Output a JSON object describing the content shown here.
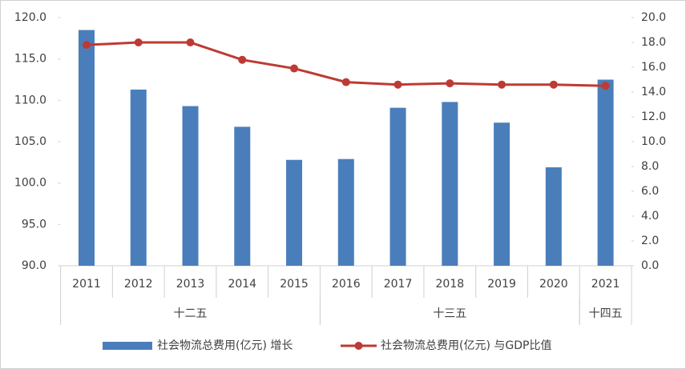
{
  "chart_data": {
    "type": "bar-line",
    "categories": [
      "2011",
      "2012",
      "2013",
      "2014",
      "2015",
      "2016",
      "2017",
      "2018",
      "2019",
      "2020",
      "2021"
    ],
    "groups": [
      {
        "label": "十二五",
        "count": 5
      },
      {
        "label": "十三五",
        "count": 5
      },
      {
        "label": "十四五",
        "count": 1
      }
    ],
    "series": [
      {
        "name": "社会物流总费用(亿元) 增长",
        "type": "bar",
        "color": "#4a7ebb",
        "values": [
          118.5,
          111.3,
          109.3,
          106.8,
          102.8,
          102.9,
          109.1,
          109.8,
          107.3,
          101.9,
          112.5
        ]
      },
      {
        "name": "社会物流总费用(亿元) 与GDP比值",
        "type": "line",
        "axis": "y2",
        "color": "#be3a34",
        "values": [
          17.8,
          18.0,
          18.0,
          16.6,
          15.9,
          14.8,
          14.6,
          14.7,
          14.6,
          14.6,
          14.5
        ]
      }
    ],
    "ylim": [
      90,
      120
    ],
    "yticks": [
      {
        "value": 90,
        "label": "90.0"
      },
      {
        "value": 95,
        "label": "95.0"
      },
      {
        "value": 100,
        "label": "100.0"
      },
      {
        "value": 105,
        "label": "105.0"
      },
      {
        "value": 110,
        "label": "110.0"
      },
      {
        "value": 115,
        "label": "115.0"
      },
      {
        "value": 120,
        "label": "120.0"
      }
    ],
    "y2lim": [
      0,
      20
    ],
    "y2ticks": [
      {
        "value": 0,
        "label": "0.0"
      },
      {
        "value": 2,
        "label": "2.0"
      },
      {
        "value": 4,
        "label": "4.0"
      },
      {
        "value": 6,
        "label": "6.0"
      },
      {
        "value": 8,
        "label": "8.0"
      },
      {
        "value": 10,
        "label": "10.0"
      },
      {
        "value": 12,
        "label": "12.0"
      },
      {
        "value": 14,
        "label": "14.0"
      },
      {
        "value": 16,
        "label": "16.0"
      },
      {
        "value": 18,
        "label": "18.0"
      },
      {
        "value": 20,
        "label": "20.0"
      }
    ],
    "legend": "bottom"
  }
}
